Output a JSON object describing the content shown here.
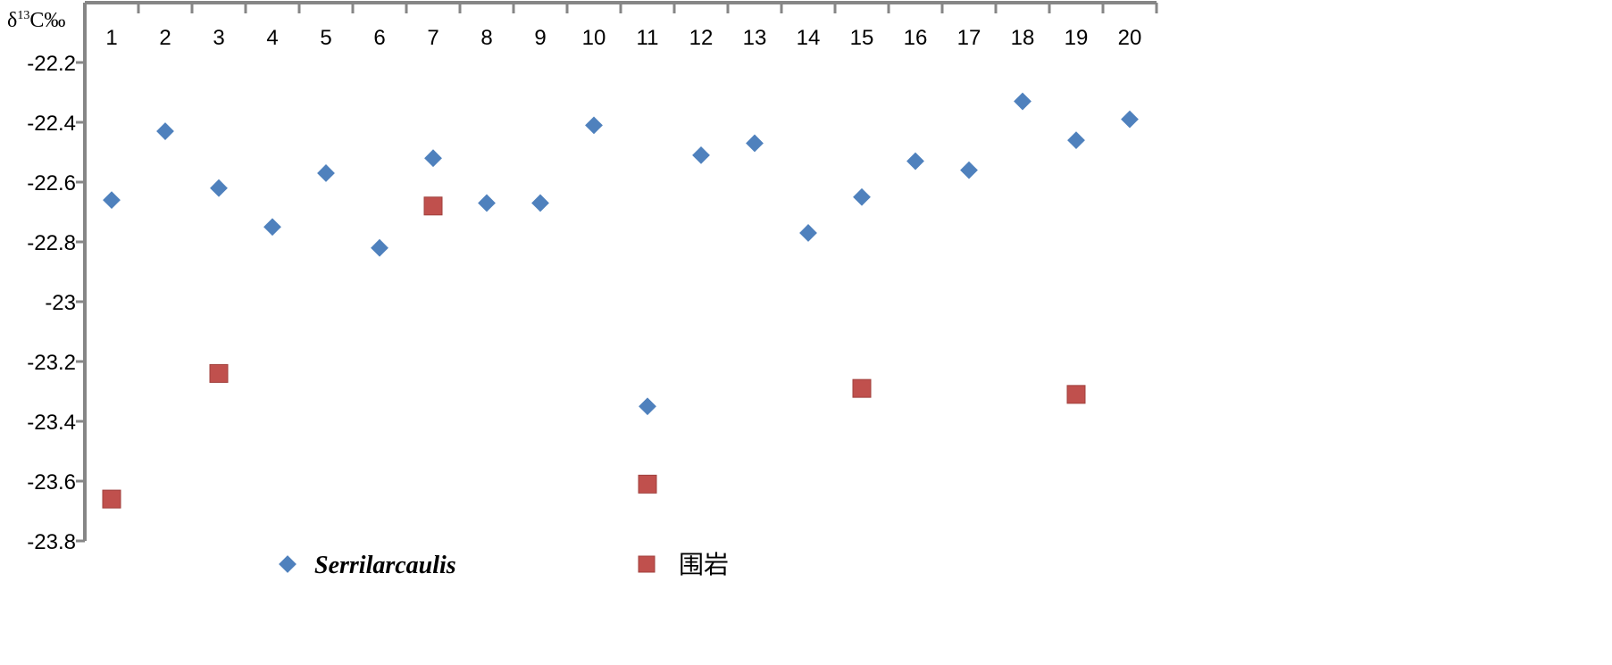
{
  "chart_data": {
    "type": "scatter",
    "title": "",
    "xlabel": "",
    "ylabel": "δ13C‰",
    "ylabel_parts": {
      "base": "δ",
      "sup": "13",
      "rest": "C‰"
    },
    "categories": [
      "1",
      "2",
      "3",
      "4",
      "5",
      "6",
      "7",
      "8",
      "9",
      "10",
      "11",
      "12",
      "13",
      "14",
      "15",
      "16",
      "17",
      "18",
      "19",
      "20"
    ],
    "ylim": [
      -23.8,
      -22.0
    ],
    "yticks": [
      "-22.2",
      "-22.4",
      "-22.6",
      "-22.8",
      "-23",
      "-23.2",
      "-23.4",
      "-23.6",
      "-23.8"
    ],
    "ytick_values": [
      -22.2,
      -22.4,
      -22.6,
      -22.8,
      -23.0,
      -23.2,
      -23.4,
      -23.6,
      -23.8
    ],
    "x_axis_position": "top",
    "grid": false,
    "legend_position": "bottom",
    "series": [
      {
        "name": "Serrilarcaulis",
        "marker": "diamond",
        "color": "#4F81BD",
        "x": [
          1,
          2,
          3,
          4,
          5,
          6,
          7,
          8,
          9,
          10,
          11,
          12,
          13,
          14,
          15,
          16,
          17,
          18,
          19,
          20
        ],
        "values": [
          -22.66,
          -22.43,
          -22.62,
          -22.75,
          -22.57,
          -22.82,
          -22.52,
          -22.67,
          -22.67,
          -22.41,
          -23.35,
          -22.51,
          -22.47,
          -22.77,
          -22.65,
          -22.53,
          -22.56,
          -22.33,
          -22.46,
          -22.39
        ]
      },
      {
        "name": "围岩",
        "marker": "square",
        "color": "#C0504D",
        "x": [
          1,
          3,
          7,
          11,
          15,
          19
        ],
        "values": [
          -23.66,
          -23.24,
          -22.68,
          -23.61,
          -23.29,
          -23.31
        ]
      }
    ]
  }
}
